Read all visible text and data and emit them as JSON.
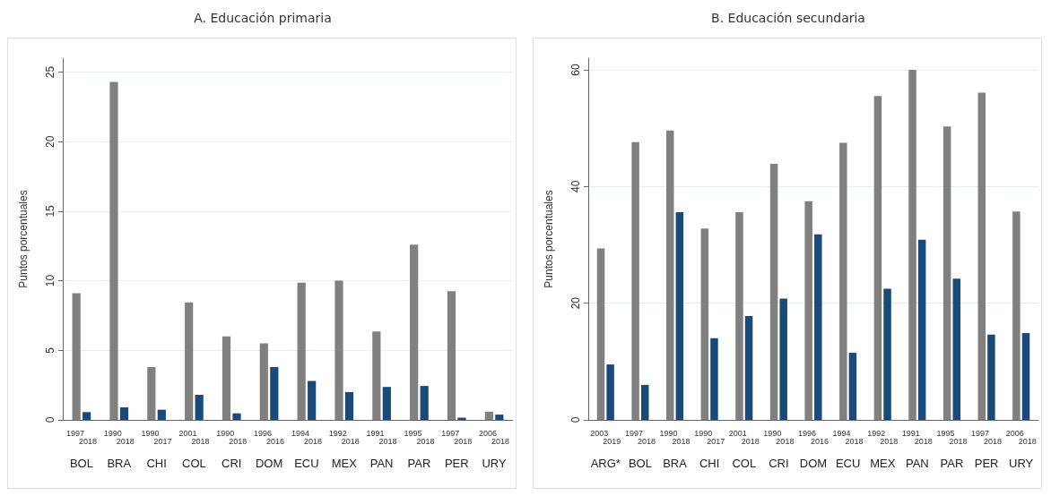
{
  "chart_data": [
    {
      "type": "bar",
      "title": "A. Educación primaria",
      "ylabel": "Puntos porcentuales",
      "categories": [
        "1997\n2018\nBOL",
        "1990\n2018\nBRA",
        "1990\n2017\nCHI",
        "2001\n2018\nCOL",
        "1990\n2018\nCRI",
        "1996\n2016\nDOM",
        "1994\n2018\nECU",
        "1992\n2018\nMEX",
        "1991\n2018\nPAN",
        "1995\n2018\nPAR",
        "1997\n2018\nPER",
        "2006\n2018\nURY"
      ],
      "series": [
        {
          "color": "#808080",
          "values": [
            9.1,
            24.3,
            3.8,
            8.45,
            6.0,
            5.5,
            9.86,
            10.0,
            6.36,
            12.6,
            9.25,
            0.59
          ]
        },
        {
          "color": "#1a4a7a",
          "values": [
            0.56,
            0.9,
            0.73,
            1.8,
            0.47,
            3.8,
            2.8,
            2.0,
            2.37,
            2.44,
            0.16,
            0.38
          ]
        }
      ],
      "ylim": [
        0,
        26
      ],
      "yticks": [
        0,
        5,
        10,
        15,
        20,
        25
      ],
      "grid": "y"
    },
    {
      "type": "bar",
      "title": "B. Educación secundaria",
      "ylabel": "Puntos porcentuales",
      "categories": [
        "2003\n2019\nARG*",
        "1997\n2018\nBOL",
        "1990\n2018\nBRA",
        "1990\n2017\nCHI",
        "2001\n2018\nCOL",
        "1990\n2018\nCRI",
        "1996\n2016\nDOM",
        "1994\n2018\nECU",
        "1992\n2018\nMEX",
        "1991\n2018\nPAN",
        "1995\n2018\nPAR",
        "1997\n2018\nPER",
        "2006\n2018\nURY"
      ],
      "series": [
        {
          "color": "#808080",
          "values": [
            29.4,
            47.6,
            49.6,
            32.8,
            35.6,
            43.9,
            37.5,
            47.5,
            55.5,
            60.0,
            50.3,
            56.1,
            35.7
          ]
        },
        {
          "color": "#1a4a7a",
          "values": [
            9.5,
            6.0,
            35.6,
            14.0,
            17.8,
            20.8,
            31.8,
            11.5,
            22.5,
            30.9,
            24.2,
            14.6,
            14.9
          ]
        }
      ],
      "ylim": [
        0,
        62
      ],
      "yticks": [
        0,
        20,
        40,
        60
      ],
      "grid": "y"
    }
  ]
}
